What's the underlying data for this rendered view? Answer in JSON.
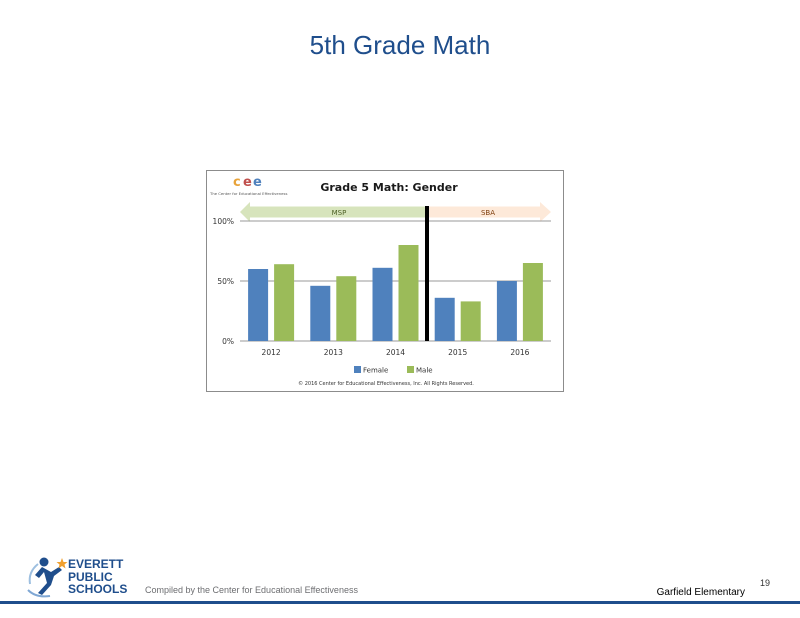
{
  "slide": {
    "title": "5th Grade Math",
    "page_number": "19",
    "school": "Garfield Elementary",
    "compiled_by": "Compiled by the Center for Educational Effectiveness",
    "district_logo_lines": [
      "EVERETT",
      "PUBLIC",
      "SCHOOLS"
    ]
  },
  "cee_logo": {
    "letters": [
      "c",
      "e",
      "e"
    ],
    "letter_colors": [
      "#e8a33a",
      "#c0504d",
      "#4f81bd"
    ],
    "subtitle": "The Center for Educational Effectiveness"
  },
  "chart_data": {
    "type": "bar",
    "title": "Grade 5 Math: Gender",
    "categories": [
      "2012",
      "2013",
      "2014",
      "2015",
      "2016"
    ],
    "series": [
      {
        "name": "Female",
        "color": "#4f81bd",
        "values": [
          0.6,
          0.46,
          0.61,
          0.36,
          0.5
        ]
      },
      {
        "name": "Male",
        "color": "#9bbb59",
        "values": [
          0.64,
          0.54,
          0.8,
          0.33,
          0.65
        ]
      }
    ],
    "ylim": [
      0,
      1
    ],
    "yticks": [
      {
        "value": 0,
        "label": "0%"
      },
      {
        "value": 0.5,
        "label": "50%"
      },
      {
        "value": 1,
        "label": "100%"
      }
    ],
    "grid": true,
    "legend": "bottom",
    "test_periods": [
      {
        "label": "MSP",
        "color": "#d7e4bc",
        "text_color": "#4f6228"
      },
      {
        "label": "SBA",
        "color": "#fde9d9",
        "text_color": "#7f3f0f"
      }
    ],
    "copyright": "© 2016 Center for Educational Effectiveness, Inc. All Rights Reserved."
  }
}
